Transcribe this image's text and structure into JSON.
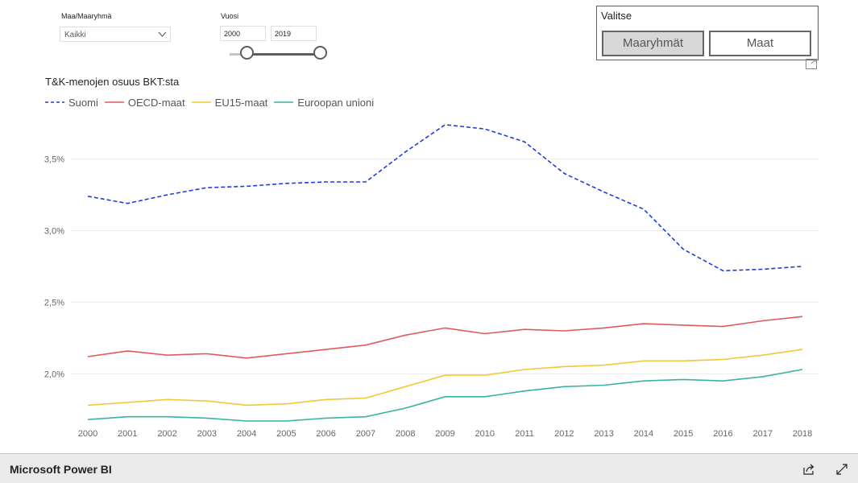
{
  "filters": {
    "group_label": "Maa/Maaryhmä",
    "group_value": "Kaikki",
    "year_label": "Vuosi",
    "year_from": "2000",
    "year_to": "2019"
  },
  "selector": {
    "title": "Valitse",
    "buttons": [
      {
        "label": "Maaryhmät",
        "active": true
      },
      {
        "label": "Maat",
        "active": false
      }
    ]
  },
  "footer": {
    "brand": "Microsoft Power BI"
  },
  "icons": [
    "chevron-down-icon",
    "expand-icon",
    "share-icon",
    "fullscreen-icon"
  ],
  "chart_data": {
    "type": "line",
    "title": "T&K-menojen osuus BKT:sta",
    "x": [
      "2000",
      "2001",
      "2002",
      "2003",
      "2004",
      "2005",
      "2006",
      "2007",
      "2008",
      "2009",
      "2010",
      "2011",
      "2012",
      "2013",
      "2014",
      "2015",
      "2016",
      "2017",
      "2018"
    ],
    "yticks": [
      2.0,
      2.5,
      3.0,
      3.5
    ],
    "ytick_labels": [
      "2,0%",
      "2,5%",
      "3,0%",
      "3,5%"
    ],
    "ylim": [
      1.67,
      3.79
    ],
    "grid": true,
    "legend_position": "top-left",
    "series": [
      {
        "name": "Suomi",
        "color": "#1f3ddc",
        "dashed": true,
        "values": [
          3.24,
          3.19,
          3.25,
          3.3,
          3.31,
          3.33,
          3.34,
          3.34,
          3.55,
          3.74,
          3.71,
          3.62,
          3.4,
          3.27,
          3.15,
          2.87,
          2.72,
          2.73,
          2.75
        ]
      },
      {
        "name": "OECD-maat",
        "color": "#e05a5a",
        "dashed": false,
        "values": [
          2.12,
          2.16,
          2.13,
          2.14,
          2.11,
          2.14,
          2.17,
          2.2,
          2.27,
          2.32,
          2.28,
          2.31,
          2.3,
          2.32,
          2.35,
          2.34,
          2.33,
          2.37,
          2.4
        ]
      },
      {
        "name": "EU15-maat",
        "color": "#efc935",
        "dashed": false,
        "values": [
          1.78,
          1.8,
          1.82,
          1.81,
          1.78,
          1.79,
          1.82,
          1.83,
          1.91,
          1.99,
          1.99,
          2.03,
          2.05,
          2.06,
          2.09,
          2.09,
          2.1,
          2.13,
          2.17
        ]
      },
      {
        "name": "Euroopan unioni",
        "color": "#3ab3a0",
        "dashed": false,
        "values": [
          1.68,
          1.7,
          1.7,
          1.69,
          1.67,
          1.67,
          1.69,
          1.7,
          1.76,
          1.84,
          1.84,
          1.88,
          1.91,
          1.92,
          1.95,
          1.96,
          1.95,
          1.98,
          2.03
        ]
      }
    ]
  }
}
